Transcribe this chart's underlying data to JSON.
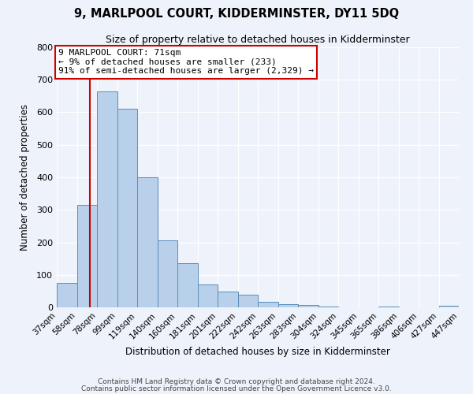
{
  "title": "9, MARLPOOL COURT, KIDDERMINSTER, DY11 5DQ",
  "subtitle": "Size of property relative to detached houses in Kidderminster",
  "xlabel": "Distribution of detached houses by size in Kidderminster",
  "ylabel": "Number of detached properties",
  "bins": [
    "37sqm",
    "58sqm",
    "78sqm",
    "99sqm",
    "119sqm",
    "140sqm",
    "160sqm",
    "181sqm",
    "201sqm",
    "222sqm",
    "242sqm",
    "263sqm",
    "283sqm",
    "304sqm",
    "324sqm",
    "345sqm",
    "365sqm",
    "386sqm",
    "406sqm",
    "427sqm",
    "447sqm"
  ],
  "bar_values": [
    75,
    315,
    665,
    610,
    400,
    205,
    135,
    70,
    48,
    38,
    17,
    10,
    7,
    3,
    0,
    0,
    3,
    0,
    0,
    5
  ],
  "bar_color": "#b8d0ea",
  "bar_edge_color": "#5b8db8",
  "vline_color": "#cc0000",
  "annotation_title": "9 MARLPOOL COURT: 71sqm",
  "annotation_line1": "← 9% of detached houses are smaller (233)",
  "annotation_line2": "91% of semi-detached houses are larger (2,329) →",
  "annotation_box_color": "#ffffff",
  "annotation_box_edge": "#cc0000",
  "ylim": [
    0,
    800
  ],
  "yticks": [
    0,
    100,
    200,
    300,
    400,
    500,
    600,
    700,
    800
  ],
  "background_color": "#eef2fa",
  "grid_color": "#ffffff",
  "footer1": "Contains HM Land Registry data © Crown copyright and database right 2024.",
  "footer2": "Contains public sector information licensed under the Open Government Licence v3.0."
}
